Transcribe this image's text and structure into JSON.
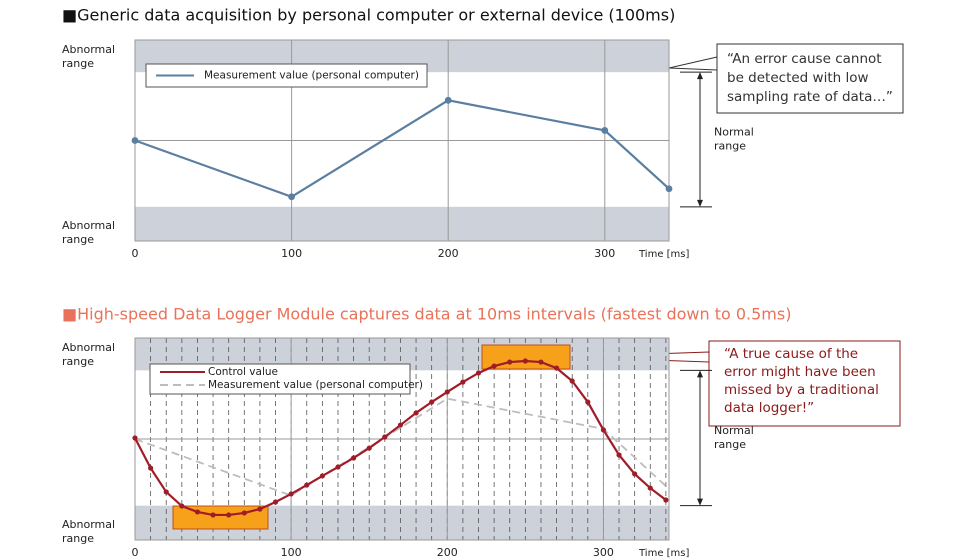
{
  "chart_data": [
    {
      "type": "line",
      "title": "■Generic data acquisition by personal computer or external device (100ms)",
      "title_color": "#111111",
      "xlabel": "Time [ms]",
      "xlim": [
        0,
        341
      ],
      "ylim": [
        0,
        100
      ],
      "xticks": [
        0,
        100,
        200,
        300
      ],
      "normal_range": [
        17,
        84
      ],
      "abnormal_label": [
        "Abnormal",
        "range"
      ],
      "normal_label": [
        "Normal",
        "range"
      ],
      "callout": [
        "“An error cause cannot",
        "be detected with low",
        "sampling rate of data…”"
      ],
      "callout_color": "#333333",
      "series": [
        {
          "name": "Measurement value (personal computer)",
          "color": "#5a7fa0",
          "dash": false,
          "markers": true,
          "x": [
            0,
            100,
            200,
            300,
            341
          ],
          "values": [
            50,
            22,
            70,
            55,
            26
          ]
        }
      ]
    },
    {
      "type": "line",
      "title": "■High-speed Data Logger Module captures data at 10ms intervals (fastest down to 0.5ms)",
      "title_color": "#e8735a",
      "xlabel": "Time [ms]",
      "xlim": [
        0,
        342
      ],
      "ylim": [
        0,
        100
      ],
      "xticks": [
        0,
        100,
        200,
        300
      ],
      "normal_range": [
        17,
        84
      ],
      "abnormal_label": [
        "Abnormal",
        "range"
      ],
      "normal_label": [
        "Normal",
        "range"
      ],
      "callout": [
        "“A true cause of the",
        "error might have been",
        "missed by a traditional",
        "data logger!”"
      ],
      "callout_color": "#8b1a1a",
      "series": [
        {
          "name": "Control value",
          "color": "#a01c28",
          "dash": false,
          "markers": true,
          "x": [
            0,
            10,
            20,
            30,
            40,
            50,
            60,
            70,
            80,
            90,
            100,
            110,
            120,
            130,
            140,
            150,
            160,
            170,
            180,
            190,
            200,
            210,
            220,
            230,
            240,
            250,
            260,
            270,
            280,
            290,
            300,
            310,
            320,
            330,
            340
          ],
          "values": [
            50.5,
            35.6,
            23.8,
            16.8,
            13.9,
            12.4,
            12.4,
            13.4,
            15.3,
            18.8,
            22.8,
            27.2,
            31.7,
            36.1,
            40.6,
            45.5,
            51,
            56.9,
            62.9,
            68.3,
            73.3,
            78.2,
            82.7,
            86.1,
            88.1,
            88.6,
            88.1,
            85.1,
            78.7,
            68.3,
            54.5,
            42.1,
            32.7,
            25.7,
            19.8
          ]
        },
        {
          "name": "Measurement value (personal computer)",
          "color": "#bdbdbd",
          "dash": true,
          "markers": false,
          "x": [
            0,
            100,
            200,
            300,
            341
          ],
          "values": [
            50,
            22,
            70,
            55,
            26
          ]
        }
      ]
    }
  ]
}
